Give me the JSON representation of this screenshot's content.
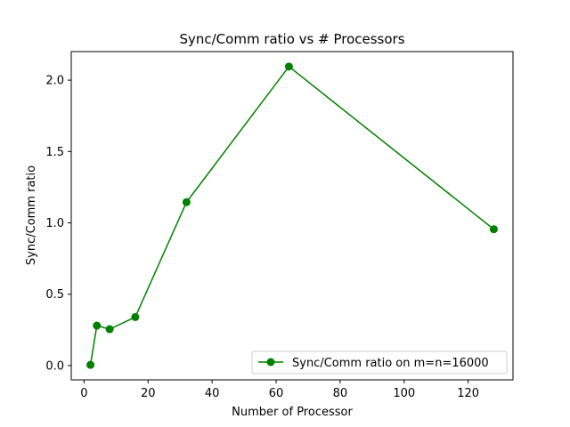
{
  "chart_data": {
    "type": "line",
    "title": "Sync/Comm ratio vs # Processors",
    "xlabel": "Number of Processor",
    "ylabel": "Sync/Comm ratio",
    "xlim": [
      -4,
      134
    ],
    "ylim": [
      -0.1,
      2.2
    ],
    "xticks": [
      0,
      20,
      40,
      60,
      80,
      100,
      120
    ],
    "yticks": [
      0.0,
      0.5,
      1.0,
      1.5,
      2.0
    ],
    "xtick_labels": [
      "0",
      "20",
      "40",
      "60",
      "80",
      "100",
      "120"
    ],
    "ytick_labels": [
      "0.0",
      "0.5",
      "1.0",
      "1.5",
      "2.0"
    ],
    "grid": false,
    "legend_position": "lower right",
    "series": [
      {
        "name": "Sync/Comm ratio on m=n=16000",
        "color": "#008000",
        "marker": "circle",
        "x": [
          2,
          4,
          8,
          16,
          32,
          64,
          128
        ],
        "y": [
          0.005,
          0.28,
          0.255,
          0.34,
          1.145,
          2.095,
          0.955
        ]
      }
    ]
  }
}
